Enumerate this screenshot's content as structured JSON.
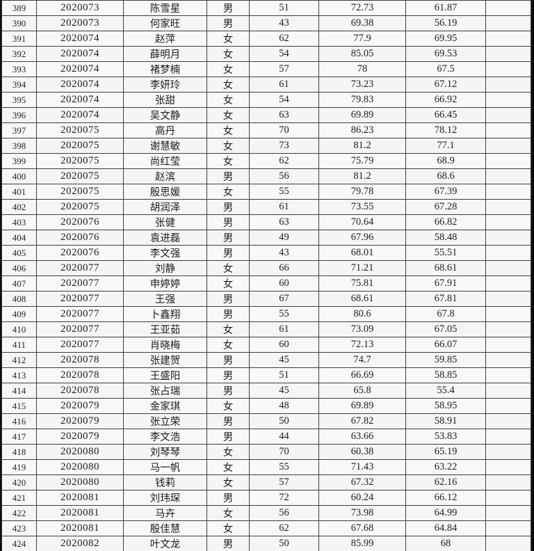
{
  "colors": {
    "cell_background": "#f8f8f8",
    "grid_border": "#3e3e3e",
    "outer_frame": "#0c0c0c",
    "text": "#1d1d1d"
  },
  "table": {
    "column_keys": [
      "seq",
      "code",
      "name",
      "gender",
      "score_written",
      "score_interview",
      "score_total",
      "empty"
    ],
    "rows": [
      [
        "389",
        "2020073",
        "陈雪星",
        "男",
        "51",
        "72.73",
        "61.87",
        ""
      ],
      [
        "390",
        "2020073",
        "何家旺",
        "男",
        "43",
        "69.38",
        "56.19",
        ""
      ],
      [
        "391",
        "2020074",
        "赵萍",
        "女",
        "62",
        "77.9",
        "69.95",
        ""
      ],
      [
        "392",
        "2020074",
        "薛明月",
        "女",
        "54",
        "85.05",
        "69.53",
        ""
      ],
      [
        "393",
        "2020074",
        "褚梦楠",
        "女",
        "57",
        "78",
        "67.5",
        ""
      ],
      [
        "394",
        "2020074",
        "李妍玲",
        "女",
        "61",
        "73.23",
        "67.12",
        ""
      ],
      [
        "395",
        "2020074",
        "张甜",
        "女",
        "54",
        "79.83",
        "66.92",
        ""
      ],
      [
        "396",
        "2020074",
        "吴文静",
        "女",
        "63",
        "69.89",
        "66.45",
        ""
      ],
      [
        "397",
        "2020075",
        "高丹",
        "女",
        "70",
        "86.23",
        "78.12",
        ""
      ],
      [
        "398",
        "2020075",
        "谢慧敏",
        "女",
        "73",
        "81.2",
        "77.1",
        ""
      ],
      [
        "399",
        "2020075",
        "尚红莹",
        "女",
        "62",
        "75.79",
        "68.9",
        ""
      ],
      [
        "400",
        "2020075",
        "赵滨",
        "男",
        "56",
        "81.2",
        "68.6",
        ""
      ],
      [
        "401",
        "2020075",
        "殷思媛",
        "女",
        "55",
        "79.78",
        "67.39",
        ""
      ],
      [
        "402",
        "2020075",
        "胡润泽",
        "男",
        "61",
        "73.55",
        "67.28",
        ""
      ],
      [
        "403",
        "2020076",
        "张健",
        "男",
        "63",
        "70.64",
        "66.82",
        ""
      ],
      [
        "404",
        "2020076",
        "袁进磊",
        "男",
        "49",
        "67.96",
        "58.48",
        ""
      ],
      [
        "405",
        "2020076",
        "李文强",
        "男",
        "43",
        "68.01",
        "55.51",
        ""
      ],
      [
        "406",
        "2020077",
        "刘静",
        "女",
        "66",
        "71.21",
        "68.61",
        ""
      ],
      [
        "407",
        "2020077",
        "申婷婷",
        "女",
        "60",
        "75.81",
        "67.91",
        ""
      ],
      [
        "408",
        "2020077",
        "王强",
        "男",
        "67",
        "68.61",
        "67.81",
        ""
      ],
      [
        "409",
        "2020077",
        "卜鑫翔",
        "男",
        "55",
        "80.6",
        "67.8",
        ""
      ],
      [
        "410",
        "2020077",
        "王亚茹",
        "女",
        "61",
        "73.09",
        "67.05",
        ""
      ],
      [
        "411",
        "2020077",
        "肖晓梅",
        "女",
        "60",
        "72.13",
        "66.07",
        ""
      ],
      [
        "412",
        "2020078",
        "张建贺",
        "男",
        "45",
        "74.7",
        "59.85",
        ""
      ],
      [
        "413",
        "2020078",
        "王盛阳",
        "男",
        "51",
        "66.69",
        "58.85",
        ""
      ],
      [
        "414",
        "2020078",
        "张占瑞",
        "男",
        "45",
        "65.8",
        "55.4",
        ""
      ],
      [
        "415",
        "2020079",
        "金家琪",
        "女",
        "48",
        "69.89",
        "58.95",
        ""
      ],
      [
        "416",
        "2020079",
        "张立荣",
        "男",
        "50",
        "67.82",
        "58.91",
        ""
      ],
      [
        "417",
        "2020079",
        "李文浩",
        "男",
        "44",
        "63.66",
        "53.83",
        ""
      ],
      [
        "418",
        "2020080",
        "刘琴琴",
        "女",
        "70",
        "60.38",
        "65.19",
        ""
      ],
      [
        "419",
        "2020080",
        "马一帆",
        "女",
        "55",
        "71.43",
        "63.22",
        ""
      ],
      [
        "420",
        "2020080",
        "钱莉",
        "女",
        "57",
        "67.32",
        "62.16",
        ""
      ],
      [
        "421",
        "2020081",
        "刘玮琛",
        "男",
        "72",
        "60.24",
        "66.12",
        ""
      ],
      [
        "422",
        "2020081",
        "马卉",
        "女",
        "56",
        "73.98",
        "64.99",
        ""
      ],
      [
        "423",
        "2020081",
        "殷佳慧",
        "女",
        "62",
        "67.68",
        "64.84",
        ""
      ],
      [
        "424",
        "2020082",
        "叶文龙",
        "男",
        "50",
        "85.99",
        "68",
        ""
      ]
    ]
  }
}
